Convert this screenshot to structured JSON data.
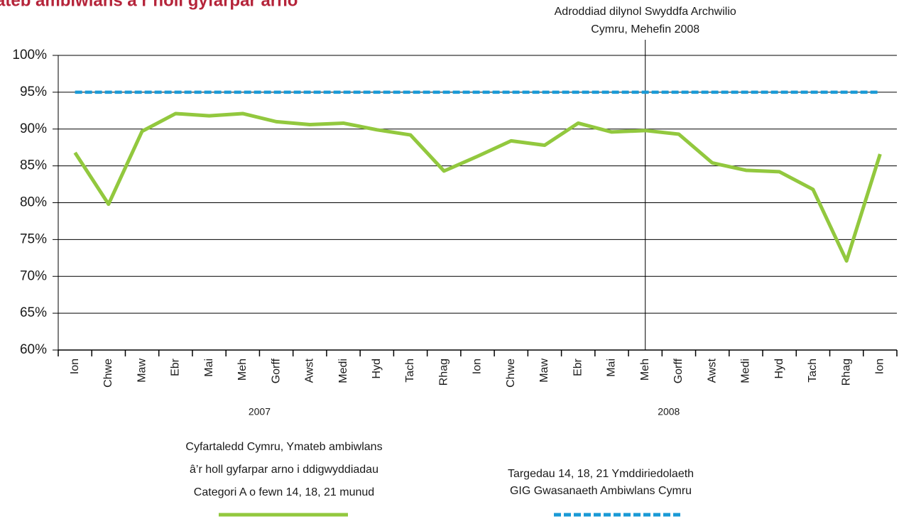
{
  "chart_data": {
    "type": "line",
    "title": "ateb ambiwlans â’r holl gyfarpar arno",
    "annotation": "Adroddiad dilynol Swyddfa Archwilio\nCymru, Mehefin 2008",
    "categories": [
      "Ion",
      "Chwe",
      "Maw",
      "Ebr",
      "Mai",
      "Meh",
      "Gorff",
      "Awst",
      "Medi",
      "Hyd",
      "Tach",
      "Rhag",
      "Ion",
      "Chwe",
      "Maw",
      "Ebr",
      "Mai",
      "Meh",
      "Gorff",
      "Awst",
      "Medi",
      "Hyd",
      "Tach",
      "Rhag",
      "Ion"
    ],
    "years": [
      "2007",
      "2008"
    ],
    "series": [
      {
        "name": "Cyfartaledd Cymru, Ymateb ambiwlans\nâ’r holl gyfarpar arno i ddigwyddiadau\nCategori A o fewn 14, 18, 21 munud",
        "color": "#92c83e",
        "values": [
          86.8,
          79.8,
          89.7,
          92.1,
          91.8,
          92.1,
          91.0,
          90.6,
          90.8,
          89.9,
          89.2,
          84.3,
          86.3,
          88.4,
          87.8,
          90.8,
          89.6,
          89.8,
          89.3,
          85.4,
          84.4,
          84.2,
          81.8,
          72.1,
          86.6
        ]
      },
      {
        "name": "Targedau 14, 18, 21 Ymddiriedolaeth\nGIG Gwasanaeth Ambiwlans Cymru",
        "color": "#1a9ad6",
        "dashed": true,
        "values": [
          95,
          95,
          95,
          95,
          95,
          95,
          95,
          95,
          95,
          95,
          95,
          95,
          95,
          95,
          95,
          95,
          95,
          95,
          95,
          95,
          95,
          95,
          95,
          95,
          95
        ]
      }
    ],
    "ylim": [
      60,
      100
    ],
    "yticks": [
      {
        "value": 60,
        "label": "60%"
      },
      {
        "value": 65,
        "label": "65%"
      },
      {
        "value": 70,
        "label": "70%"
      },
      {
        "value": 75,
        "label": "75%"
      },
      {
        "value": 80,
        "label": "80%"
      },
      {
        "value": 85,
        "label": "85%"
      },
      {
        "value": 90,
        "label": "90%"
      },
      {
        "value": 95,
        "label": "95%"
      },
      {
        "value": 100,
        "label": "100%"
      }
    ],
    "grid": true
  }
}
